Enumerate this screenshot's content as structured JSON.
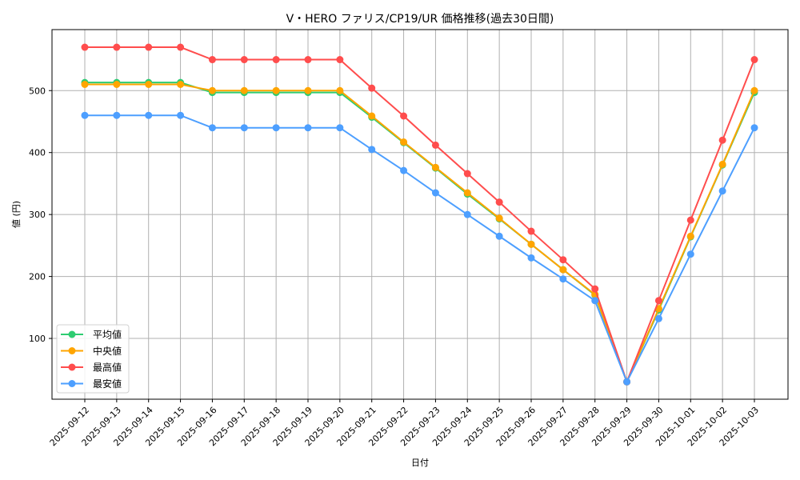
{
  "chart_data": {
    "type": "line",
    "title": "V・HERO ファリス/CP19/UR 価格推移(過去30日間)",
    "xlabel": "日付",
    "ylabel": "値 (円)",
    "ylim": [
      10,
      592
    ],
    "yticks": [
      100,
      200,
      300,
      400,
      500
    ],
    "grid": true,
    "legend_position": "lower left",
    "categories": [
      "2025-09-12",
      "2025-09-13",
      "2025-09-14",
      "2025-09-15",
      "2025-09-16",
      "2025-09-17",
      "2025-09-18",
      "2025-09-19",
      "2025-09-20",
      "2025-09-21",
      "2025-09-22",
      "2025-09-23",
      "2025-09-24",
      "2025-09-25",
      "2025-09-26",
      "2025-09-27",
      "2025-09-28",
      "2025-09-29",
      "2025-09-30",
      "2025-10-01",
      "2025-10-02",
      "2025-10-03"
    ],
    "series": [
      {
        "name": "平均値",
        "color": "#2ecc71",
        "values": [
          513,
          513,
          513,
          513,
          497,
          497,
          497,
          497,
          497,
          457,
          416,
          375,
          333,
          293,
          252,
          211,
          170,
          30,
          146,
          264,
          380,
          497
        ]
      },
      {
        "name": "中央値",
        "color": "#ffa500",
        "values": [
          510,
          510,
          510,
          510,
          500,
          500,
          500,
          500,
          500,
          459,
          417,
          376,
          335,
          294,
          252,
          211,
          171,
          30,
          148,
          265,
          381,
          500
        ]
      },
      {
        "name": "最高値",
        "color": "#ff4d4d",
        "values": [
          570,
          570,
          570,
          570,
          550,
          550,
          550,
          550,
          550,
          504,
          459,
          412,
          366,
          320,
          273,
          227,
          180,
          30,
          161,
          291,
          420,
          550
        ]
      },
      {
        "name": "最安値",
        "color": "#4d9fff",
        "values": [
          460,
          460,
          460,
          460,
          440,
          440,
          440,
          440,
          440,
          405,
          371,
          335,
          300,
          265,
          230,
          196,
          161,
          30,
          132,
          236,
          338,
          440
        ]
      }
    ]
  }
}
